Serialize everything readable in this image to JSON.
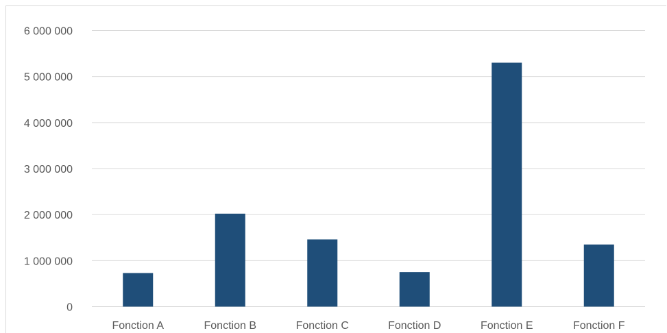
{
  "chart_data": {
    "type": "bar",
    "categories": [
      "Fonction A",
      "Fonction B",
      "Fonction C",
      "Fonction D",
      "Fonction E",
      "Fonction F"
    ],
    "values": [
      730000,
      2020000,
      1460000,
      750000,
      5300000,
      1350000
    ],
    "yticks": [
      "0",
      "1 000 000",
      "2 000 000",
      "3 000 000",
      "4 000 000",
      "5 000 000",
      "6 000 000"
    ],
    "ylim": [
      0,
      6000000
    ],
    "grid": true,
    "bar_color": "#1f4e79",
    "title": "",
    "xlabel": "",
    "ylabel": ""
  }
}
